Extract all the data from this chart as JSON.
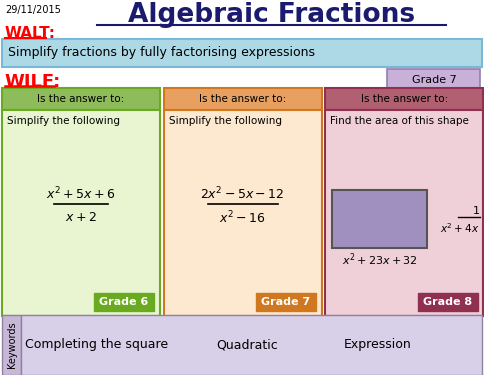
{
  "title": "Algebraic Fractions",
  "date": "29/11/2015",
  "walt_text": "WALT:",
  "walt_desc": "Simplify fractions by fully factorising expressions",
  "wilf_text": "WILF:",
  "grade7_label": "Grade 7",
  "bg_color": "#ffffff",
  "walt_box_color": "#add8e6",
  "keywords_label": "Keywords",
  "keywords": [
    "Completing the square",
    "Quadratic",
    "Expression"
  ],
  "col1_header_color": "#8fbc5a",
  "col1_body_color": "#e8f5d0",
  "col1_border_color": "#6aaa20",
  "col2_header_color": "#e8a060",
  "col2_body_color": "#fde8d0",
  "col2_border_color": "#d07820",
  "col3_header_color": "#b06070",
  "col3_body_color": "#f0d0d8",
  "col3_border_color": "#903050",
  "header_text": "Is the answer to:",
  "col1_title": "Simplify the following",
  "col2_title": "Simplify the following",
  "col3_title": "Find the area of this shape",
  "col1_grade": "Grade 6",
  "col2_grade": "Grade 7",
  "col3_grade": "Grade 8",
  "grade7_box_color": "#c8b0d8",
  "grade6_box_color": "#6aaa20",
  "grade7b_box_color": "#d07820",
  "grade8_box_color": "#903050",
  "rect_fill": "#a090c0",
  "kw_box_color": "#d8d0e8",
  "kw_label_color": "#c8b8d8"
}
